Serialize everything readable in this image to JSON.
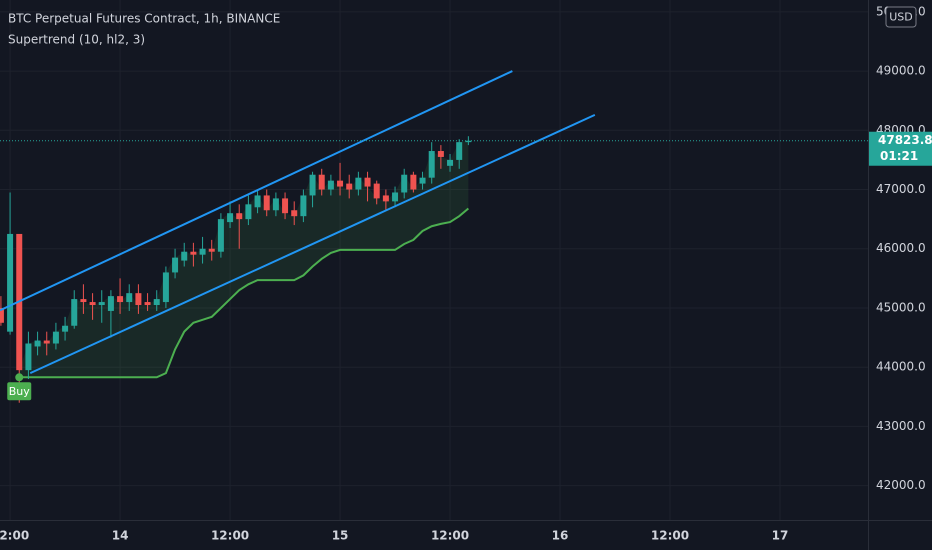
{
  "chart_data": {
    "type": "candlestick",
    "title": "BTC Perpetual Futures Contract, 1h, BINANCE",
    "x": [
      11,
      12,
      13,
      14,
      15,
      16,
      17,
      18,
      19,
      20,
      21,
      22,
      23,
      24,
      25,
      26,
      27,
      28,
      29,
      30,
      31,
      32,
      33,
      34,
      35,
      36,
      37,
      38,
      39,
      40,
      41,
      42,
      43,
      44,
      45,
      46,
      47,
      48,
      49,
      50,
      51,
      52,
      53,
      54,
      55,
      56,
      57,
      58,
      59,
      60,
      61,
      62
    ],
    "open": [
      45000,
      44600,
      46250,
      43950,
      44350,
      44450,
      44400,
      44600,
      44700,
      45150,
      45100,
      45050,
      44950,
      45200,
      45100,
      45250,
      45100,
      45050,
      45100,
      45600,
      45800,
      45950,
      45900,
      46000,
      45950,
      46450,
      46600,
      46500,
      46700,
      46900,
      46650,
      46850,
      46650,
      46550,
      46900,
      47250,
      47000,
      47150,
      47100,
      47000,
      47200,
      47100,
      46900,
      46800,
      46950,
      47250,
      47100,
      47200,
      47650,
      47400,
      47500,
      47800
    ],
    "high": [
      45200,
      46950,
      46250,
      44600,
      44600,
      44600,
      44750,
      44850,
      45300,
      45400,
      45250,
      45300,
      45300,
      45500,
      45400,
      45400,
      45250,
      45300,
      45700,
      46000,
      46100,
      46100,
      46200,
      46150,
      46600,
      46800,
      46750,
      46900,
      47000,
      47000,
      46950,
      46950,
      46800,
      47000,
      47300,
      47350,
      47250,
      47450,
      47250,
      47300,
      47300,
      47150,
      47000,
      47050,
      47350,
      47300,
      47300,
      47800,
      47750,
      47600,
      47850,
      47900
    ],
    "low": [
      44700,
      44550,
      43400,
      43800,
      44200,
      44200,
      44300,
      44450,
      44650,
      44900,
      44800,
      44750,
      44500,
      44900,
      44950,
      44900,
      44950,
      44950,
      45000,
      45500,
      45700,
      45700,
      45750,
      45800,
      45850,
      46350,
      46000,
      46400,
      46600,
      46550,
      46550,
      46500,
      46400,
      46450,
      46700,
      46900,
      46900,
      46900,
      46850,
      46900,
      46800,
      46750,
      46650,
      46700,
      46850,
      46950,
      47000,
      47100,
      47350,
      47300,
      47350,
      47750
    ],
    "close": [
      44750,
      46250,
      43950,
      44400,
      44450,
      44400,
      44600,
      44700,
      45150,
      45100,
      45050,
      45100,
      45200,
      45100,
      45250,
      45050,
      45050,
      45150,
      45600,
      45850,
      45950,
      45900,
      46000,
      45950,
      46500,
      46600,
      46500,
      46750,
      46900,
      46650,
      46850,
      46600,
      46550,
      46900,
      47250,
      47000,
      47150,
      47050,
      47000,
      47200,
      47050,
      46850,
      46800,
      46950,
      47250,
      47000,
      47200,
      47650,
      47550,
      47500,
      47800,
      47824
    ],
    "up_color": "#26a69a",
    "down_color": "#ef5350",
    "supertrend": {
      "name": "Supertrend (10, hl2, 3)",
      "color": "#4caf50",
      "values": [
        null,
        null,
        43830,
        43830,
        43830,
        43830,
        43830,
        43830,
        43830,
        43830,
        43830,
        43830,
        43830,
        43830,
        43830,
        43830,
        43830,
        43830,
        43900,
        44300,
        44600,
        44750,
        44800,
        44850,
        45000,
        45150,
        45300,
        45400,
        45470,
        45470,
        45470,
        45470,
        45470,
        45550,
        45700,
        45830,
        45930,
        45980,
        45980,
        45980,
        45980,
        45980,
        45980,
        45980,
        46080,
        46150,
        46300,
        46380,
        46420,
        46450,
        46550,
        46680
      ]
    },
    "signal": {
      "label": "Buy",
      "x": 13,
      "value": 43830,
      "color": "#4caf50"
    },
    "trendlines": [
      {
        "color": "#2196f3",
        "x": [
          10.9,
          66.8
        ],
        "values": [
          44960,
          49000
        ]
      },
      {
        "color": "#2196f3",
        "x": [
          14.2,
          75.8
        ],
        "values": [
          43900,
          48260
        ]
      }
    ],
    "last_price": {
      "value": 47823.8,
      "countdown": "01:21",
      "color": "#26a69a"
    },
    "currency": "USD",
    "xlim": [
      10.9,
      105.6
    ],
    "ylim": [
      41420,
      50200
    ],
    "xticks": [
      {
        "value": 12,
        "label": "12:00"
      },
      {
        "value": 24,
        "label": "14"
      },
      {
        "value": 36,
        "label": "12:00"
      },
      {
        "value": 48,
        "label": "15"
      },
      {
        "value": 60,
        "label": "12:00"
      },
      {
        "value": 72,
        "label": "16"
      },
      {
        "value": 84,
        "label": "12:00"
      },
      {
        "value": 96,
        "label": "17"
      }
    ],
    "yticks": [
      {
        "value": 42000,
        "label": "42000.0"
      },
      {
        "value": 43000,
        "label": "43000.0"
      },
      {
        "value": 44000,
        "label": "44000.0"
      },
      {
        "value": 45000,
        "label": "45000.0"
      },
      {
        "value": 46000,
        "label": "46000.0"
      },
      {
        "value": 47000,
        "label": "47000.0"
      },
      {
        "value": 48000,
        "label": "48000.0"
      },
      {
        "value": 49000,
        "label": "49000.0"
      },
      {
        "value": 50000,
        "label": "50000.0"
      }
    ],
    "grid": true
  }
}
